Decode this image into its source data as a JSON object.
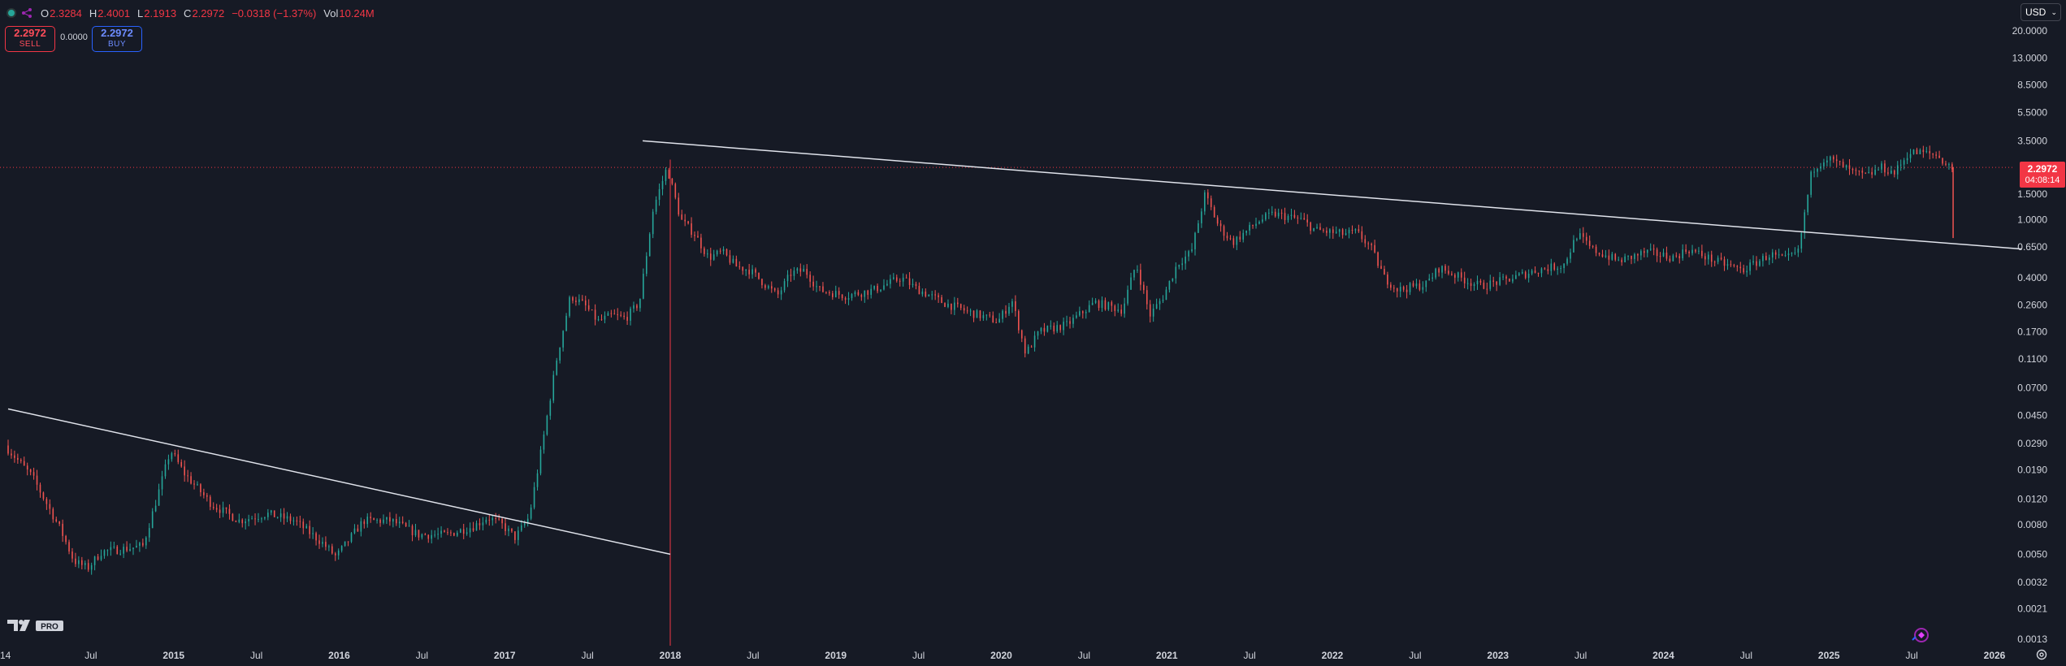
{
  "header": {
    "ohlc": [
      {
        "key": "O",
        "value": "2.3284"
      },
      {
        "key": "H",
        "value": "2.4001"
      },
      {
        "key": "L",
        "value": "2.1913"
      },
      {
        "key": "C",
        "value": "2.2972"
      },
      {
        "key": "",
        "value": "−0.0318 (−1.37%)"
      },
      {
        "key": "Vol",
        "value": "10.24M"
      }
    ]
  },
  "trade": {
    "sell_price": "2.2972",
    "sell_label": "SELL",
    "spread": "0.0000",
    "buy_price": "2.2972",
    "buy_label": "BUY"
  },
  "currency": "USD",
  "last_price": {
    "value": "2.2972",
    "countdown": "04:08:14"
  },
  "colors": {
    "up": "#26a69a",
    "down": "#ef5350",
    "accent": "#f23645",
    "trendline": "#e0e3eb"
  },
  "icons": {
    "symbol": "dot-icon",
    "share": "share-icon",
    "logo": "tv-logo-icon",
    "settings": "gear-icon",
    "replay": "replay-icon"
  },
  "logo_badge": "PRO",
  "chart_data": {
    "type": "candlestick",
    "yscale": "log",
    "ylim": [
      0.0013,
      20
    ],
    "y_ticks": [
      "20.0000",
      "13.0000",
      "8.5000",
      "5.5000",
      "3.5000",
      "1.5000",
      "1.0000",
      "0.6500",
      "0.4000",
      "0.2600",
      "0.1700",
      "0.1100",
      "0.0700",
      "0.0450",
      "0.0290",
      "0.0190",
      "0.0120",
      "0.0080",
      "0.0050",
      "0.0032",
      "0.0021",
      "0.0013"
    ],
    "x_ticks": [
      "14",
      "Jul",
      "2015",
      "Jul",
      "2016",
      "Jul",
      "2017",
      "Jul",
      "2018",
      "Jul",
      "2019",
      "Jul",
      "2020",
      "Jul",
      "2021",
      "Jul",
      "2022",
      "Jul",
      "2023",
      "Jul",
      "2024",
      "Jul",
      "2025",
      "Jul",
      "2026"
    ],
    "xlim": [
      "2014-01",
      "2026-03"
    ],
    "series_path": [
      [
        "2014-01",
        0.028
      ],
      [
        "2014-03",
        0.017
      ],
      [
        "2014-05",
        0.0075
      ],
      [
        "2014-06",
        0.0045
      ],
      [
        "2014-07",
        0.004
      ],
      [
        "2014-08",
        0.0052
      ],
      [
        "2014-10",
        0.0055
      ],
      [
        "2014-11",
        0.0057
      ],
      [
        "2014-12",
        0.012
      ],
      [
        "2015-01",
        0.026
      ],
      [
        "2015-02",
        0.018
      ],
      [
        "2015-04",
        0.011
      ],
      [
        "2015-06",
        0.0085
      ],
      [
        "2015-08",
        0.0095
      ],
      [
        "2015-10",
        0.0085
      ],
      [
        "2015-12",
        0.006
      ],
      [
        "2016-01",
        0.0048
      ],
      [
        "2016-03",
        0.0085
      ],
      [
        "2016-05",
        0.0085
      ],
      [
        "2016-07",
        0.0068
      ],
      [
        "2016-09",
        0.0068
      ],
      [
        "2016-11",
        0.0078
      ],
      [
        "2016-12",
        0.009
      ],
      [
        "2017-01",
        0.008
      ],
      [
        "2017-02",
        0.0065
      ],
      [
        "2017-03",
        0.009
      ],
      [
        "2017-04",
        0.03
      ],
      [
        "2017-05",
        0.11
      ],
      [
        "2017-06",
        0.3
      ],
      [
        "2017-07",
        0.26
      ],
      [
        "2017-08",
        0.2
      ],
      [
        "2017-09",
        0.22
      ],
      [
        "2017-10",
        0.21
      ],
      [
        "2017-11",
        0.27
      ],
      [
        "2017-12",
        1.2
      ],
      [
        "2018-01",
        2.3
      ],
      [
        "2018-02",
        1.0
      ],
      [
        "2018-03",
        0.8
      ],
      [
        "2018-04",
        0.55
      ],
      [
        "2018-05",
        0.6
      ],
      [
        "2018-06",
        0.48
      ],
      [
        "2018-07",
        0.45
      ],
      [
        "2018-09",
        0.3
      ],
      [
        "2018-10",
        0.43
      ],
      [
        "2018-11",
        0.45
      ],
      [
        "2018-12",
        0.33
      ],
      [
        "2019-02",
        0.3
      ],
      [
        "2019-04",
        0.33
      ],
      [
        "2019-06",
        0.4
      ],
      [
        "2019-07",
        0.34
      ],
      [
        "2019-09",
        0.27
      ],
      [
        "2019-11",
        0.23
      ],
      [
        "2020-01",
        0.2
      ],
      [
        "2020-02",
        0.28
      ],
      [
        "2020-03",
        0.12
      ],
      [
        "2020-04",
        0.17
      ],
      [
        "2020-06",
        0.19
      ],
      [
        "2020-08",
        0.27
      ],
      [
        "2020-10",
        0.24
      ],
      [
        "2020-11",
        0.5
      ],
      [
        "2020-12",
        0.22
      ],
      [
        "2021-01",
        0.3
      ],
      [
        "2021-02",
        0.5
      ],
      [
        "2021-03",
        0.6
      ],
      [
        "2021-04",
        1.5
      ],
      [
        "2021-05",
        0.9
      ],
      [
        "2021-06",
        0.7
      ],
      [
        "2021-08",
        1.0
      ],
      [
        "2021-09",
        1.1
      ],
      [
        "2021-11",
        1.0
      ],
      [
        "2021-12",
        0.85
      ],
      [
        "2022-02",
        0.8
      ],
      [
        "2022-03",
        0.82
      ],
      [
        "2022-04",
        0.65
      ],
      [
        "2022-05",
        0.4
      ],
      [
        "2022-06",
        0.33
      ],
      [
        "2022-08",
        0.36
      ],
      [
        "2022-09",
        0.47
      ],
      [
        "2022-11",
        0.38
      ],
      [
        "2022-12",
        0.35
      ],
      [
        "2023-02",
        0.39
      ],
      [
        "2023-04",
        0.45
      ],
      [
        "2023-06",
        0.49
      ],
      [
        "2023-07",
        0.8
      ],
      [
        "2023-08",
        0.63
      ],
      [
        "2023-10",
        0.52
      ],
      [
        "2023-12",
        0.6
      ],
      [
        "2024-02",
        0.55
      ],
      [
        "2024-03",
        0.63
      ],
      [
        "2024-05",
        0.52
      ],
      [
        "2024-07",
        0.45
      ],
      [
        "2024-09",
        0.58
      ],
      [
        "2024-10",
        0.53
      ],
      [
        "2024-11",
        0.6
      ],
      [
        "2024-12",
        2.2
      ],
      [
        "2025-01",
        2.7
      ],
      [
        "2025-02",
        2.4
      ],
      [
        "2025-03",
        2.1
      ],
      [
        "2025-04",
        2.0
      ],
      [
        "2025-05",
        2.3
      ],
      [
        "2025-06",
        2.1
      ],
      [
        "2025-07",
        2.9
      ],
      [
        "2025-08",
        2.9
      ],
      [
        "2025-09",
        2.8
      ],
      [
        "2025-10",
        2.3
      ]
    ],
    "last_wick_low": 0.75,
    "trendlines": [
      {
        "from": [
          "2014-01",
          0.05
        ],
        "to": [
          "2018-01",
          0.005
        ]
      },
      {
        "from": [
          "2017-11",
          3.5
        ],
        "to": [
          "2026-03",
          0.63
        ]
      }
    ],
    "price_line": 2.2972,
    "vertical_marker": "2018-01"
  }
}
